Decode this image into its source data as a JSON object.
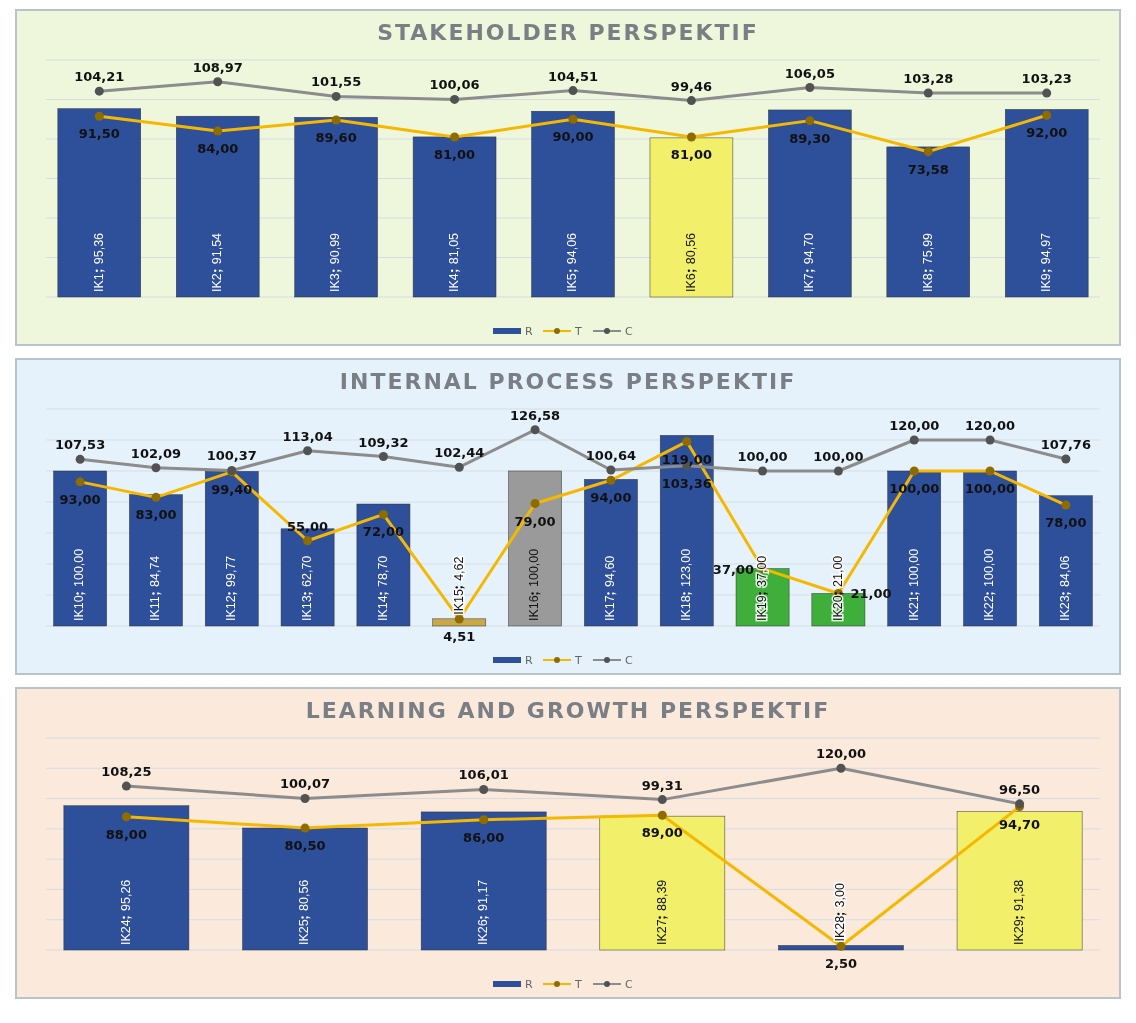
{
  "chart_data": [
    {
      "type": "bar",
      "title": "STAKEHOLDER PERSPEKTIF",
      "categories": [
        "IK1",
        "IK2",
        "IK3",
        "IK4",
        "IK5",
        "IK6",
        "IK7",
        "IK8",
        "IK9"
      ],
      "ylim": [
        0,
        120
      ],
      "yticks": [
        {
          "value": 0,
          "label": null
        },
        {
          "value": 20,
          "label": null
        },
        {
          "value": 40,
          "label": null
        },
        {
          "value": 60,
          "label": null
        },
        {
          "value": 80,
          "label": null
        },
        {
          "value": 100,
          "label": null
        },
        {
          "value": 120,
          "label": null
        }
      ],
      "grid": "y",
      "legend": "bottom",
      "marker": "circle",
      "series": [
        {
          "name": "R",
          "color": "#2e4f9a",
          "colors": [
            "#2e4f9a",
            "#2e4f9a",
            "#2e4f9a",
            "#2e4f9a",
            "#2e4f9a",
            "#f2f06a",
            "#2e4f9a",
            "#2e4f9a",
            "#2e4f9a"
          ],
          "values": [
            95.36,
            91.54,
            90.99,
            81.05,
            94.06,
            80.56,
            94.7,
            75.99,
            94.97
          ],
          "value_labels": [
            "95,36",
            "91,54",
            "90,99",
            "81,05",
            "94,06",
            "80,56",
            "94,70",
            "75,99",
            "94,97"
          ]
        },
        {
          "name": "T",
          "type": "line",
          "color": "#f5b800",
          "values": [
            91.5,
            84.0,
            89.6,
            81.0,
            90.0,
            81.0,
            89.3,
            73.58,
            92.0
          ],
          "value_labels": [
            "91,50",
            "84,00",
            "89,60",
            "81,00",
            "90,00",
            "81,00",
            "89,30",
            "73,58",
            "92,00"
          ]
        },
        {
          "name": "C",
          "type": "line",
          "color": "#8c8c8c",
          "values": [
            104.21,
            108.97,
            101.55,
            100.06,
            104.51,
            99.46,
            106.05,
            103.28,
            103.23
          ],
          "value_labels": [
            "104,21",
            "108,97",
            "101,55",
            "100,06",
            "104,51",
            "99,46",
            "106,05",
            "103,28",
            "103,23"
          ]
        }
      ]
    },
    {
      "type": "bar",
      "title": "INTERNAL PROCESS PERSPEKTIF",
      "categories": [
        "IK10",
        "IK11",
        "IK12",
        "IK13",
        "IK14",
        "IK15",
        "IK16",
        "IK17",
        "IK18",
        "IK19",
        "IK20",
        "IK21",
        "IK22",
        "IK23"
      ],
      "ylim": [
        0,
        140
      ],
      "yticks": [
        {
          "value": 0,
          "label": null
        },
        {
          "value": 20,
          "label": null
        },
        {
          "value": 40,
          "label": null
        },
        {
          "value": 60,
          "label": null
        },
        {
          "value": 80,
          "label": null
        },
        {
          "value": 100,
          "label": null
        },
        {
          "value": 120,
          "label": null
        },
        {
          "value": 140,
          "label": null
        }
      ],
      "grid": "y",
      "legend": "bottom",
      "marker": "circle",
      "series": [
        {
          "name": "R",
          "color": "#2e4f9a",
          "colors": [
            "#2e4f9a",
            "#2e4f9a",
            "#2e4f9a",
            "#2e4f9a",
            "#2e4f9a",
            "#c9a84a",
            "#9a9a9a",
            "#2e4f9a",
            "#2e4f9a",
            "#3fae3a",
            "#3fae3a",
            "#2e4f9a",
            "#2e4f9a",
            "#2e4f9a"
          ],
          "values": [
            100.0,
            84.74,
            99.77,
            62.7,
            78.7,
            4.62,
            100.0,
            94.6,
            123.0,
            37.0,
            21.0,
            100.0,
            100.0,
            84.06
          ],
          "value_labels": [
            "100,00",
            "84,74",
            "99,77",
            "62,70",
            "78,70",
            "4,62",
            "100,00",
            "94,60",
            "123,00",
            "37,00",
            "21,00",
            "100,00",
            "100,00",
            "84,06"
          ]
        },
        {
          "name": "T",
          "type": "line",
          "color": "#f5b800",
          "values": [
            93.0,
            83.0,
            99.4,
            55.0,
            72.0,
            4.51,
            79.0,
            94.0,
            119.0,
            37.0,
            21.0,
            100.0,
            100.0,
            78.0
          ],
          "value_labels": [
            "93,00",
            "83,00",
            "99,40",
            "55,00",
            "72,00",
            "4,51",
            "79,00",
            "94,00",
            "119,00",
            "37,00",
            "21,00",
            "100,00",
            "100,00",
            "78,00"
          ]
        },
        {
          "name": "C",
          "type": "line",
          "color": "#8c8c8c",
          "values": [
            107.53,
            102.09,
            100.37,
            113.04,
            109.32,
            102.44,
            126.58,
            100.64,
            103.36,
            100.0,
            100.0,
            120.0,
            120.0,
            107.76
          ],
          "value_labels": [
            "107,53",
            "102,09",
            "100,37",
            "113,04",
            "109,32",
            "102,44",
            "126,58",
            "100,64",
            "103,36",
            "100,00",
            "100,00",
            "120,00",
            "120,00",
            "107,76"
          ]
        }
      ]
    },
    {
      "type": "bar",
      "title": "LEARNING AND GROWTH PERSPEKTIF",
      "categories": [
        "IK24",
        "IK25",
        "IK26",
        "IK27",
        "IK28",
        "IK29"
      ],
      "ylim": [
        0,
        140
      ],
      "yticks": [
        {
          "value": 0,
          "label": null
        },
        {
          "value": 20,
          "label": null
        },
        {
          "value": 40,
          "label": null
        },
        {
          "value": 60,
          "label": null
        },
        {
          "value": 80,
          "label": null
        },
        {
          "value": 100,
          "label": null
        },
        {
          "value": 120,
          "label": null
        },
        {
          "value": 140,
          "label": null
        }
      ],
      "grid": "y",
      "legend": "bottom",
      "marker": "circle",
      "series": [
        {
          "name": "R",
          "color": "#2e4f9a",
          "colors": [
            "#2e4f9a",
            "#2e4f9a",
            "#2e4f9a",
            "#f2f06a",
            "#2e4f9a",
            "#f2f06a"
          ],
          "values": [
            95.26,
            80.56,
            91.17,
            88.39,
            3.0,
            91.38
          ],
          "value_labels": [
            "95,26",
            "80,56",
            "91,17",
            "88,39",
            "3,00",
            "91,38"
          ]
        },
        {
          "name": "T",
          "type": "line",
          "color": "#f5b800",
          "values": [
            88.0,
            80.5,
            86.0,
            89.0,
            2.5,
            94.7
          ],
          "value_labels": [
            "88,00",
            "80,50",
            "86,00",
            "89,00",
            "2,50",
            "94,70"
          ]
        },
        {
          "name": "C",
          "type": "line",
          "color": "#8c8c8c",
          "values": [
            108.25,
            100.07,
            106.01,
            99.31,
            120.0,
            96.5
          ],
          "value_labels": [
            "108,25",
            "100,07",
            "106,01",
            "99,31",
            "120,00",
            "96,50"
          ]
        }
      ]
    }
  ]
}
